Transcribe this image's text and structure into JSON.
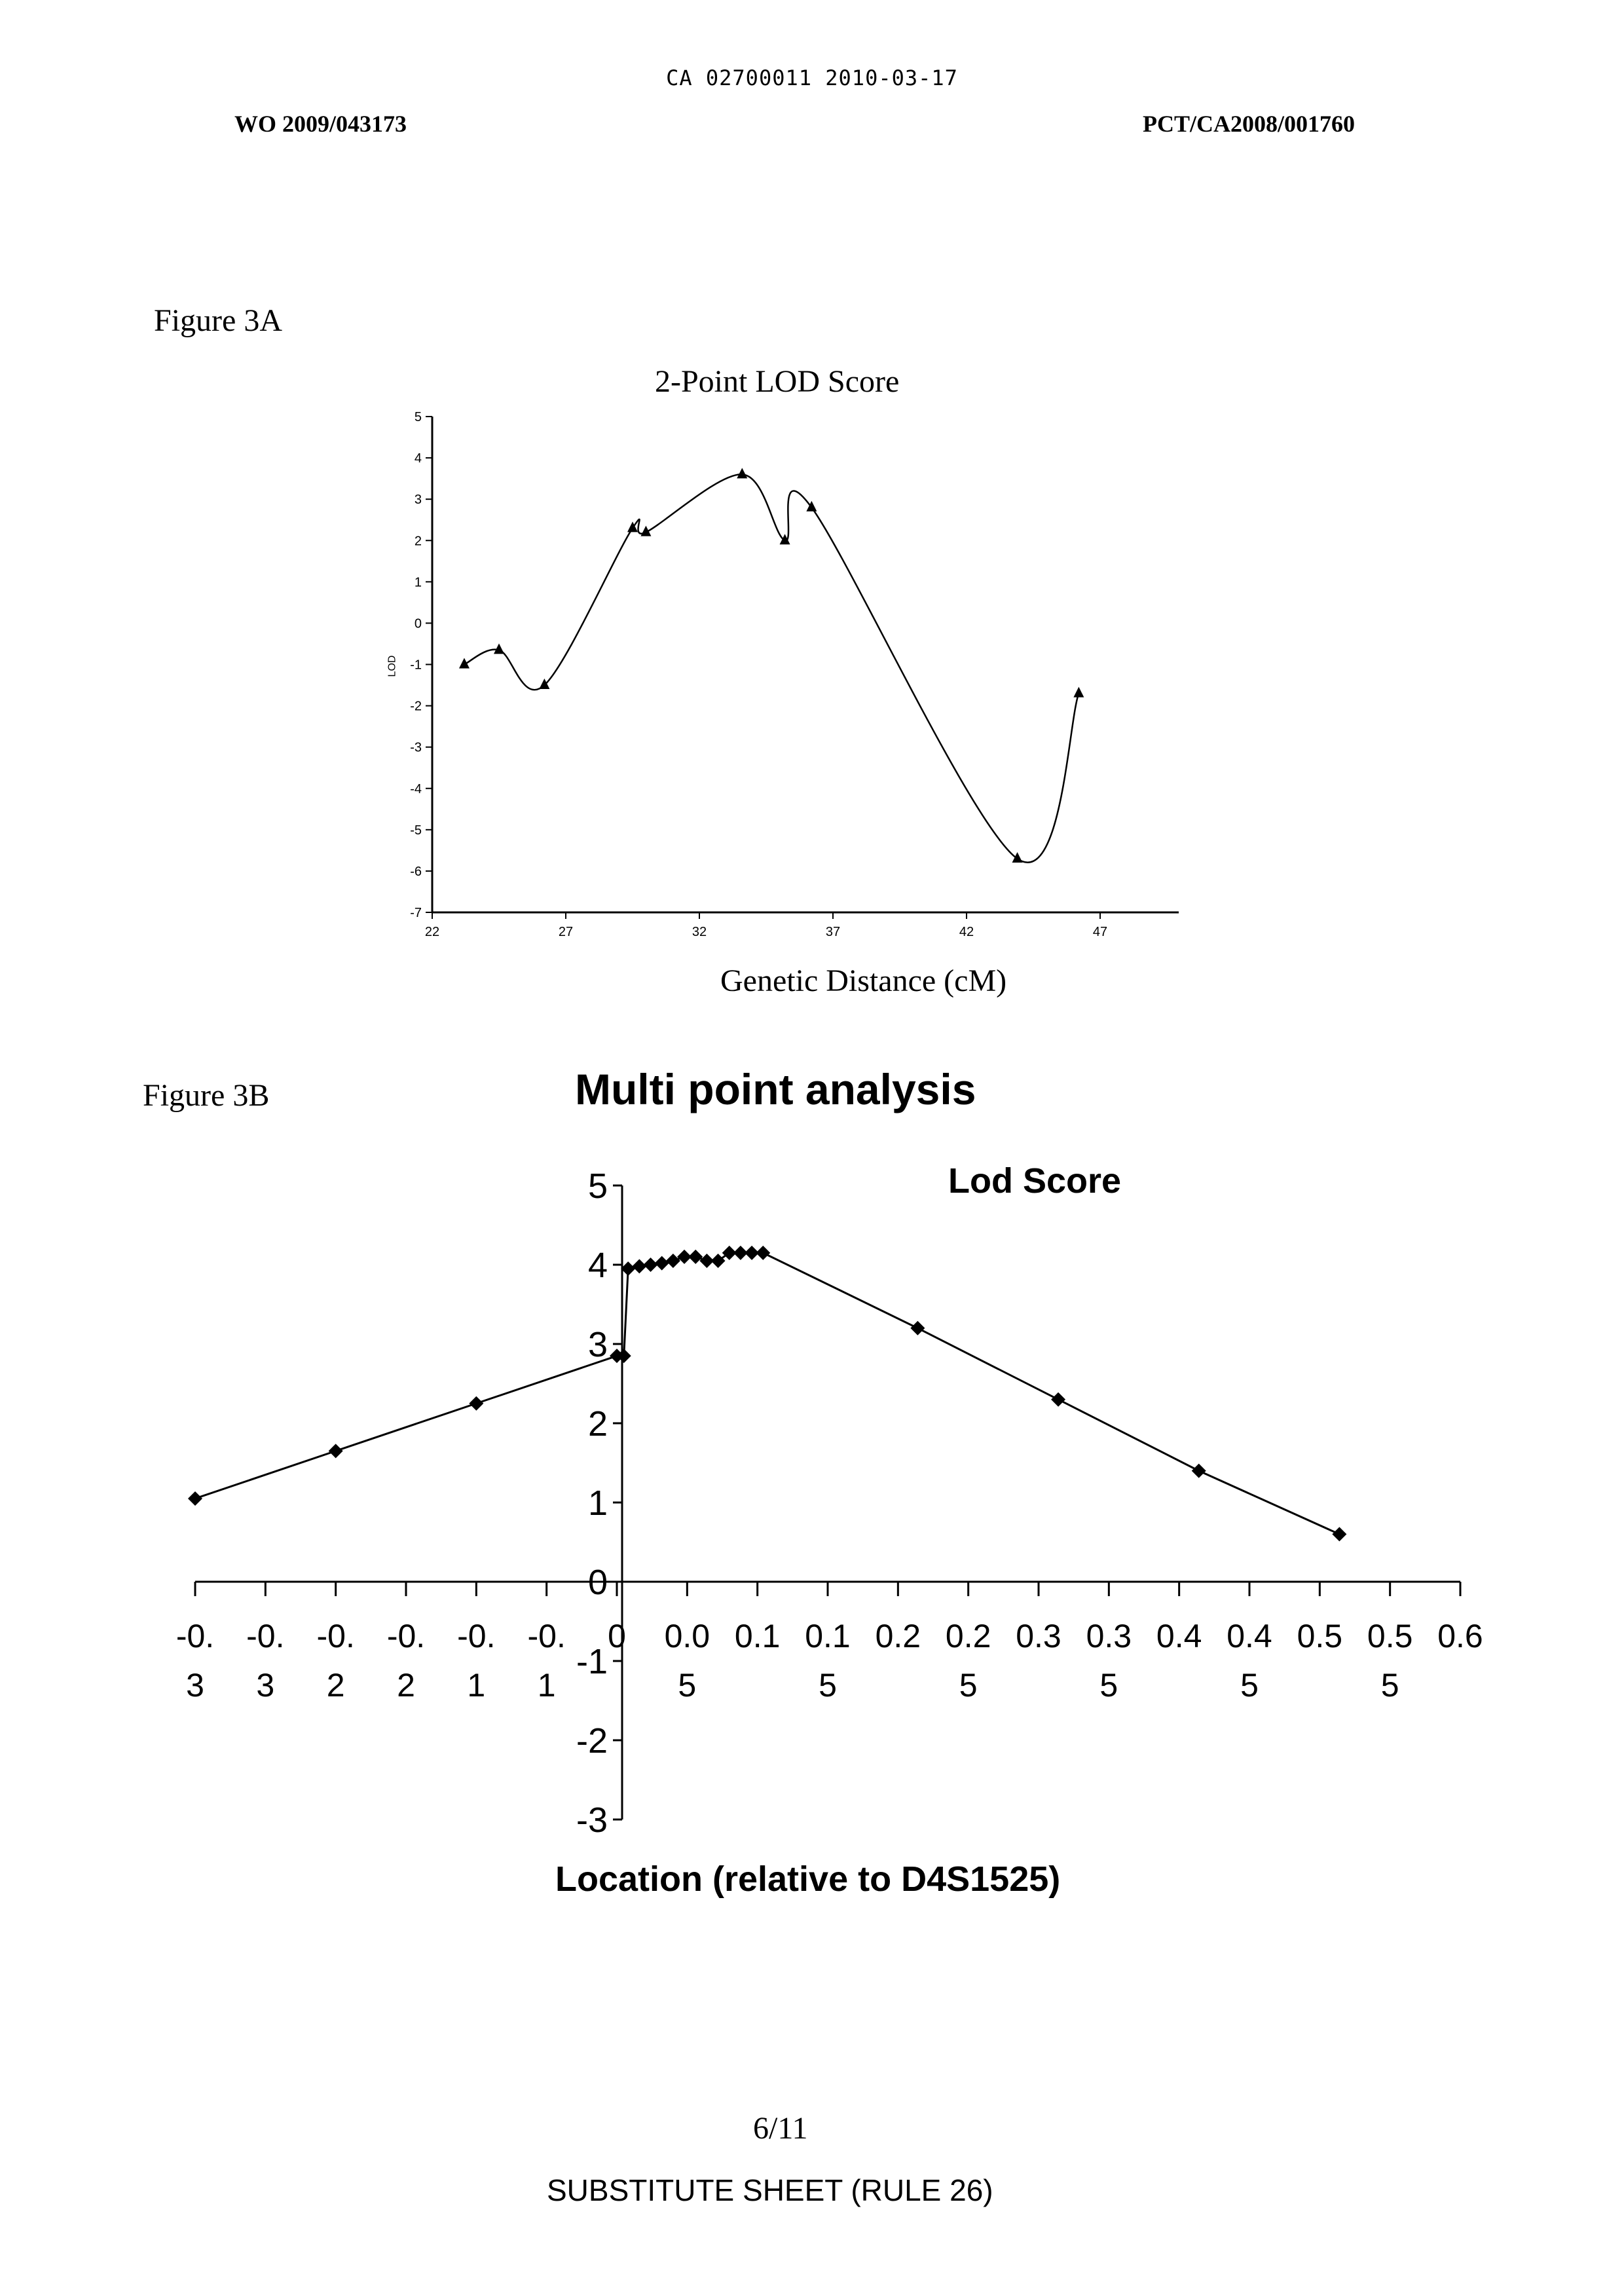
{
  "header": {
    "stamp": "CA 02700011 2010-03-17",
    "left": "WO 2009/043173",
    "right": "PCT/CA2008/001760"
  },
  "figure_a": {
    "label": "Figure 3A"
  },
  "figure_b": {
    "label": "Figure 3B"
  },
  "footer": {
    "page": "6/11",
    "sheet": "SUBSTITUTE SHEET (RULE 26)"
  },
  "chart_data": [
    {
      "type": "line",
      "title": "2-Point LOD Score",
      "xlabel": "Genetic Distance (cM)",
      "ylabel": "LOD",
      "xlim": [
        22,
        50
      ],
      "ylim": [
        -7,
        5
      ],
      "x_ticks": [
        22,
        27,
        32,
        37,
        42,
        47
      ],
      "y_ticks": [
        5,
        4,
        3,
        2,
        1,
        0,
        -1,
        -2,
        -3,
        -4,
        -5,
        -6,
        -7
      ],
      "marker": "triangle",
      "series": [
        {
          "x": [
            23.2,
            24.5,
            26.2,
            29.5,
            30.0,
            33.6,
            35.2,
            36.2,
            43.9,
            46.2
          ],
          "y": [
            -1.0,
            -0.65,
            -1.5,
            2.3,
            2.2,
            3.6,
            2.0,
            2.8,
            -5.7,
            -1.7
          ]
        }
      ]
    },
    {
      "type": "line",
      "title": "Multi point analysis",
      "legend": "Lod Score",
      "legend_placement": "top-right",
      "xlabel": "Location (relative to D4S1525)",
      "xlim": [
        -0.3,
        0.6
      ],
      "ylim": [
        -3,
        5
      ],
      "y_ticks": [
        "5",
        "4",
        "3",
        "2",
        "1",
        "0",
        "-1",
        "-2",
        "-3"
      ],
      "x_tick_labels": [
        [
          "-0.",
          "3"
        ],
        [
          "-0.",
          "3"
        ],
        [
          "-0.",
          "2"
        ],
        [
          "-0.",
          "2"
        ],
        [
          "-0.",
          "1"
        ],
        [
          "-0.",
          "1"
        ],
        [
          "0",
          ""
        ],
        [
          "0.0",
          "5"
        ],
        [
          "0.1",
          ""
        ],
        [
          "0.1",
          "5"
        ],
        [
          "0.2",
          ""
        ],
        [
          "0.2",
          "5"
        ],
        [
          "0.3",
          ""
        ],
        [
          "0.3",
          "5"
        ],
        [
          "0.4",
          ""
        ],
        [
          "0.4",
          "5"
        ],
        [
          "0.5",
          ""
        ],
        [
          "0.5",
          "5"
        ],
        [
          "0.6",
          ""
        ]
      ],
      "marker": "diamond",
      "series": [
        {
          "name": "Lod Score",
          "x": [
            -0.3,
            -0.2,
            -0.1,
            0.0,
            0.005,
            0.008,
            0.016,
            0.024,
            0.032,
            0.04,
            0.048,
            0.056,
            0.064,
            0.072,
            0.08,
            0.088,
            0.096,
            0.104,
            0.214,
            0.314,
            0.414,
            0.514
          ],
          "y": [
            1.05,
            1.65,
            2.25,
            2.85,
            2.85,
            3.95,
            3.98,
            4.0,
            4.02,
            4.05,
            4.1,
            4.1,
            4.05,
            4.05,
            4.15,
            4.15,
            4.15,
            4.15,
            3.2,
            2.3,
            1.4,
            0.6
          ]
        }
      ]
    }
  ]
}
